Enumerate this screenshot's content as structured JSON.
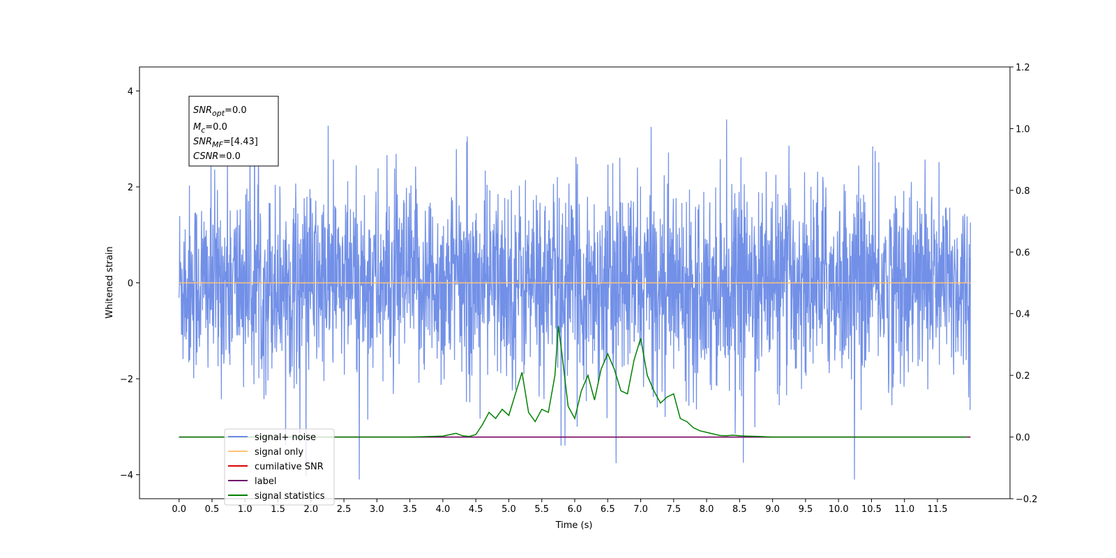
{
  "chart_data": {
    "type": "line",
    "title": "",
    "xlabel": "Time (s)",
    "ylabel": "Whitened strain",
    "y2label": "",
    "xlim": [
      -0.6,
      12.6
    ],
    "ylim": [
      -4.5,
      4.5
    ],
    "y2lim": [
      -0.2,
      1.2
    ],
    "x_ticks": [
      "0.0",
      "0.5",
      "1.0",
      "1.5",
      "2.0",
      "2.5",
      "3.0",
      "3.5",
      "4.0",
      "4.5",
      "5.0",
      "5.5",
      "6.0",
      "6.5",
      "7.0",
      "7.5",
      "8.0",
      "8.5",
      "9.0",
      "9.5",
      "10.0",
      "10.5",
      "11.0",
      "11.5"
    ],
    "y_ticks": [
      "−4",
      "−2",
      "0",
      "2",
      "4"
    ],
    "y2_ticks": [
      "−0.2",
      "0.0",
      "0.2",
      "0.4",
      "0.6",
      "0.8",
      "1.0",
      "1.2"
    ],
    "grid": false,
    "legend_placement": "lower-left",
    "annotation": {
      "lines": [
        {
          "sym": "SNR",
          "sub": "opt",
          "value": "=0.0"
        },
        {
          "sym": "M",
          "sub": "c",
          "value": "=0.0"
        },
        {
          "sym": "SNR",
          "sub": "MF",
          "value": "=[4.43]"
        },
        {
          "sym": "CSNR",
          "sub": "",
          "value": "=0.0"
        }
      ]
    },
    "series": [
      {
        "name": "signal+ noise",
        "color": "#6a8ae6",
        "axis": "left",
        "kind": "noise",
        "x_range": [
          0.0,
          12.0
        ],
        "y_range_approx": [
          -4.1,
          4.1
        ]
      },
      {
        "name": "signal only",
        "color": "#ffc27a",
        "axis": "left",
        "x": [
          0.0,
          12.0
        ],
        "y": [
          0.0,
          0.0
        ]
      },
      {
        "name": "cumilative SNR",
        "color": "#e00000",
        "axis": "right",
        "x": [
          0.0,
          12.0
        ],
        "y": [
          0.0,
          0.0
        ]
      },
      {
        "name": "label",
        "color": "#6e0a6e",
        "axis": "right",
        "x": [
          0.0,
          12.0
        ],
        "y": [
          0.0,
          0.0
        ]
      },
      {
        "name": "signal statistics",
        "color": "#008000",
        "axis": "right",
        "x": [
          0.0,
          0.5,
          1.0,
          1.5,
          2.0,
          2.5,
          3.0,
          3.5,
          4.0,
          4.2,
          4.3,
          4.4,
          4.5,
          4.6,
          4.7,
          4.8,
          4.9,
          5.0,
          5.1,
          5.2,
          5.3,
          5.4,
          5.5,
          5.6,
          5.7,
          5.75,
          5.8,
          5.9,
          6.0,
          6.1,
          6.2,
          6.3,
          6.4,
          6.5,
          6.6,
          6.7,
          6.8,
          6.9,
          7.0,
          7.1,
          7.2,
          7.3,
          7.4,
          7.5,
          7.6,
          7.7,
          7.8,
          7.9,
          8.0,
          8.1,
          8.2,
          8.3,
          8.4,
          8.5,
          8.6,
          8.8,
          9.0,
          9.5,
          10.0,
          11.0,
          11.95
        ],
        "y": [
          0.0,
          0.0,
          0.0,
          0.0,
          0.0,
          0.0,
          0.0,
          0.0,
          0.003,
          0.012,
          0.004,
          0.002,
          0.008,
          0.04,
          0.08,
          0.06,
          0.09,
          0.07,
          0.14,
          0.21,
          0.08,
          0.05,
          0.09,
          0.08,
          0.2,
          0.36,
          0.28,
          0.1,
          0.06,
          0.15,
          0.2,
          0.12,
          0.22,
          0.27,
          0.22,
          0.15,
          0.14,
          0.25,
          0.32,
          0.2,
          0.15,
          0.11,
          0.13,
          0.14,
          0.06,
          0.05,
          0.03,
          0.02,
          0.015,
          0.01,
          0.005,
          0.004,
          0.006,
          0.004,
          0.003,
          0.002,
          0.0,
          0.0,
          0.0,
          0.0,
          0.0
        ]
      }
    ]
  }
}
